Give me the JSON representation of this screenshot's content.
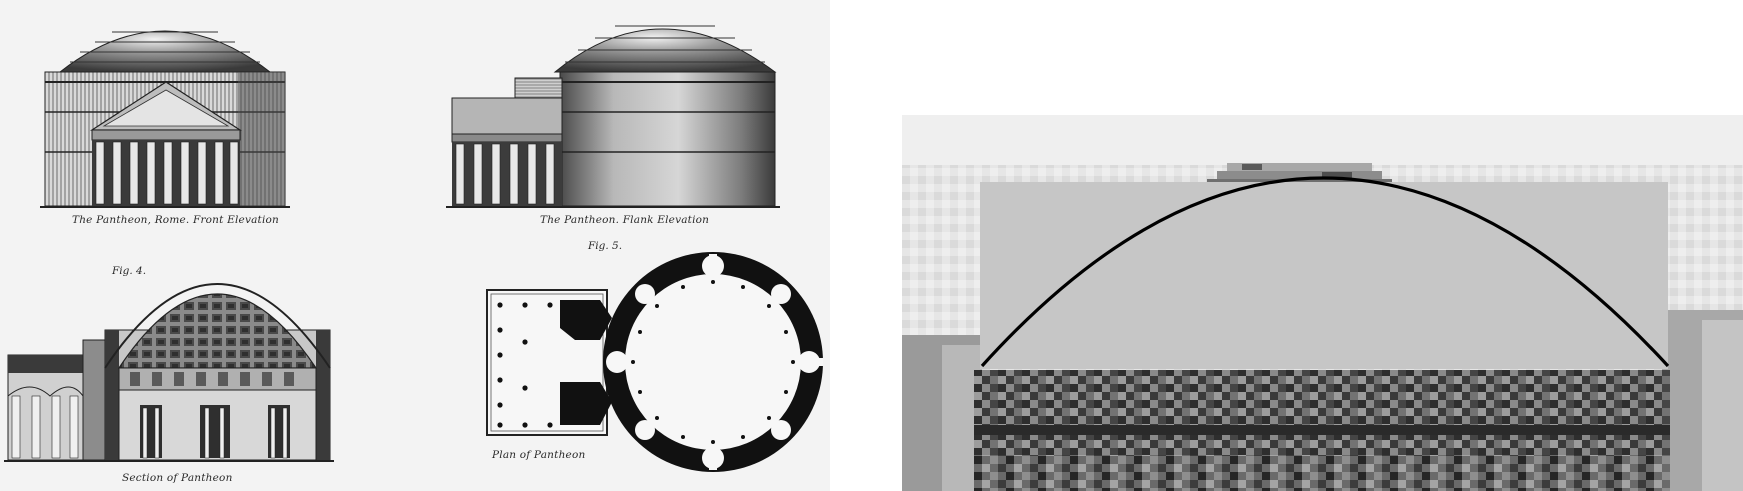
{
  "engraving": {
    "captions": {
      "front": "The Pantheon, Rome. Front Elevation",
      "flank": "The Pantheon. Flank Elevation",
      "section": "Section of Pantheon",
      "plan": "Plan of Pantheon"
    },
    "fig_labels": {
      "fig4": "Fig. 4.",
      "fig5": "Fig. 5."
    }
  },
  "colors": {
    "paper": "#f3f3f3",
    "ink": "#2a2a2a",
    "overlay": "#c6c6c6",
    "curve": "#000000"
  }
}
